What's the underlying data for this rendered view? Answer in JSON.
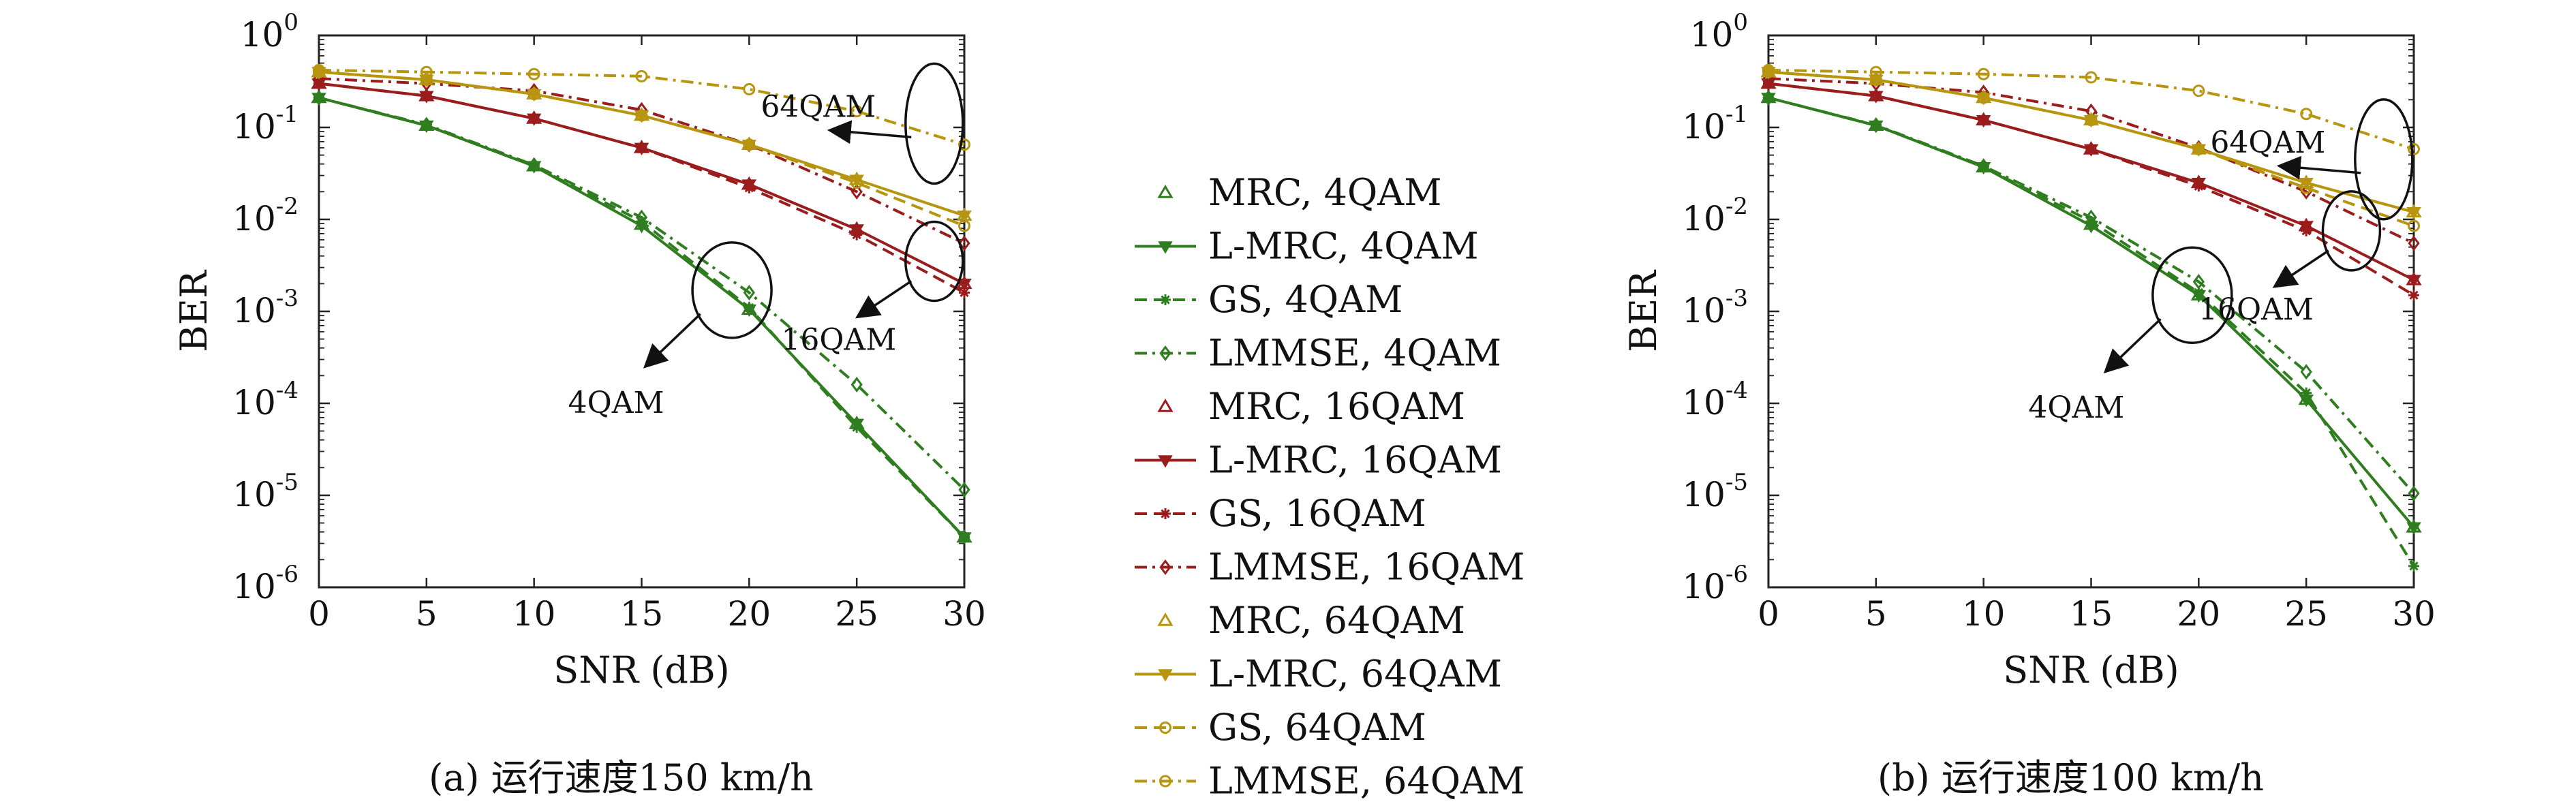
{
  "legend_entries": [
    {
      "label": "MRC, 4QAM",
      "color": "#2e7d1e",
      "dash": "none",
      "marker": "tri-up",
      "line": false
    },
    {
      "label": "L-MRC, 4QAM",
      "color": "#2e7d1e",
      "dash": "solid",
      "marker": "tri-down",
      "line": true
    },
    {
      "label": "GS, 4QAM",
      "color": "#2e7d1e",
      "dash": "dashed",
      "marker": "star",
      "line": true
    },
    {
      "label": "LMMSE, 4QAM",
      "color": "#2e7d1e",
      "dash": "dashdot",
      "marker": "diamond",
      "line": true
    },
    {
      "label": "MRC, 16QAM",
      "color": "#9b1c1c",
      "dash": "none",
      "marker": "tri-up",
      "line": false
    },
    {
      "label": "L-MRC, 16QAM",
      "color": "#9b1c1c",
      "dash": "solid",
      "marker": "tri-down",
      "line": true
    },
    {
      "label": "GS, 16QAM",
      "color": "#9b1c1c",
      "dash": "dashed",
      "marker": "star",
      "line": true
    },
    {
      "label": "LMMSE, 16QAM",
      "color": "#9b1c1c",
      "dash": "dashdot",
      "marker": "diamond",
      "line": true
    },
    {
      "label": "MRC, 64QAM",
      "color": "#b8950f",
      "dash": "none",
      "marker": "tri-up",
      "line": false
    },
    {
      "label": "L-MRC, 64QAM",
      "color": "#b8950f",
      "dash": "solid",
      "marker": "tri-down",
      "line": true
    },
    {
      "label": "GS, 64QAM",
      "color": "#b8950f",
      "dash": "dashed",
      "marker": "circle",
      "line": true
    },
    {
      "label": "LMMSE, 64QAM",
      "color": "#b8950f",
      "dash": "dashdot",
      "marker": "circle",
      "line": true
    }
  ],
  "chart_data": [
    {
      "type": "line",
      "caption": "(a) 运行速度150 km/h",
      "xlabel": "SNR (dB)",
      "ylabel": "BER",
      "x": [
        0,
        5,
        10,
        15,
        20,
        25,
        30
      ],
      "xlim": [
        0,
        30
      ],
      "ylim": [
        1e-06,
        1
      ],
      "yscale": "log",
      "xticks": [
        "0",
        "5",
        "10",
        "15",
        "20",
        "25",
        "30"
      ],
      "ytick_exponents": [
        "0",
        "-1",
        "-2",
        "-3",
        "-4",
        "-5",
        "-6"
      ],
      "annotations": [
        {
          "text": "64QAM",
          "anchor_snr": 28.6,
          "anchor_ber": 0.11
        },
        {
          "text": "16QAM",
          "anchor_snr": 28.6,
          "anchor_ber": 0.0035
        },
        {
          "text": "4QAM",
          "anchor_snr": 19.2,
          "anchor_ber": 0.0017
        }
      ],
      "series": [
        {
          "name": "MRC, 4QAM",
          "values": [
            0.21,
            0.105,
            0.038,
            0.0088,
            0.00105,
            6e-05,
            3.5e-06
          ]
        },
        {
          "name": "L-MRC, 4QAM",
          "values": [
            0.21,
            0.105,
            0.038,
            0.0085,
            0.00105,
            6e-05,
            3.5e-06
          ]
        },
        {
          "name": "GS, 4QAM",
          "values": [
            0.21,
            0.105,
            0.038,
            0.0095,
            0.0011,
            5.5e-05,
            3.5e-06
          ]
        },
        {
          "name": "LMMSE, 4QAM",
          "values": [
            0.21,
            0.107,
            0.039,
            0.0105,
            0.0016,
            0.00016,
            1.15e-05
          ]
        },
        {
          "name": "MRC, 16QAM",
          "values": [
            0.3,
            0.22,
            0.125,
            0.06,
            0.024,
            0.0078,
            0.002
          ]
        },
        {
          "name": "L-MRC, 16QAM",
          "values": [
            0.3,
            0.22,
            0.125,
            0.06,
            0.024,
            0.0078,
            0.002
          ]
        },
        {
          "name": "GS, 16QAM",
          "values": [
            0.3,
            0.22,
            0.125,
            0.06,
            0.022,
            0.0068,
            0.0016
          ]
        },
        {
          "name": "LMMSE, 16QAM",
          "values": [
            0.34,
            0.3,
            0.25,
            0.155,
            0.065,
            0.02,
            0.0055
          ]
        },
        {
          "name": "MRC, 64QAM",
          "values": [
            0.4,
            0.33,
            0.23,
            0.135,
            0.065,
            0.027,
            0.011
          ]
        },
        {
          "name": "L-MRC, 64QAM",
          "values": [
            0.4,
            0.33,
            0.23,
            0.135,
            0.065,
            0.027,
            0.011
          ]
        },
        {
          "name": "GS, 64QAM",
          "values": [
            0.4,
            0.33,
            0.23,
            0.135,
            0.065,
            0.025,
            0.0085
          ]
        },
        {
          "name": "LMMSE, 64QAM",
          "values": [
            0.42,
            0.4,
            0.38,
            0.36,
            0.26,
            0.15,
            0.065
          ]
        }
      ]
    },
    {
      "type": "line",
      "caption": "(b) 运行速度100 km/h",
      "xlabel": "SNR (dB)",
      "ylabel": "BER",
      "x": [
        0,
        5,
        10,
        15,
        20,
        25,
        30
      ],
      "xlim": [
        0,
        30
      ],
      "ylim": [
        1e-06,
        1
      ],
      "yscale": "log",
      "xticks": [
        "0",
        "5",
        "10",
        "15",
        "20",
        "25",
        "30"
      ],
      "ytick_exponents": [
        "0",
        "-1",
        "-2",
        "-3",
        "-4",
        "-5",
        "-6"
      ],
      "annotations": [
        {
          "text": "64QAM",
          "anchor_snr": 28.6,
          "anchor_ber": 0.045
        },
        {
          "text": "16QAM",
          "anchor_snr": 27.1,
          "anchor_ber": 0.0075
        },
        {
          "text": "4QAM",
          "anchor_snr": 19.7,
          "anchor_ber": 0.0015
        }
      ],
      "series": [
        {
          "name": "MRC, 4QAM",
          "values": [
            0.21,
            0.105,
            0.037,
            0.0088,
            0.0015,
            0.00011,
            4.5e-06
          ]
        },
        {
          "name": "L-MRC, 4QAM",
          "values": [
            0.21,
            0.105,
            0.037,
            0.0085,
            0.0015,
            0.00011,
            4.5e-06
          ]
        },
        {
          "name": "GS, 4QAM",
          "values": [
            0.21,
            0.105,
            0.037,
            0.0095,
            0.0016,
            0.00013,
            1.7e-06
          ]
        },
        {
          "name": "LMMSE, 4QAM",
          "values": [
            0.21,
            0.106,
            0.038,
            0.0105,
            0.0021,
            0.00022,
            1.05e-05
          ]
        },
        {
          "name": "MRC, 16QAM",
          "values": [
            0.3,
            0.22,
            0.12,
            0.058,
            0.025,
            0.0085,
            0.0022
          ]
        },
        {
          "name": "L-MRC, 16QAM",
          "values": [
            0.3,
            0.22,
            0.12,
            0.058,
            0.025,
            0.0085,
            0.0022
          ]
        },
        {
          "name": "GS, 16QAM",
          "values": [
            0.3,
            0.22,
            0.12,
            0.058,
            0.023,
            0.0075,
            0.0015
          ]
        },
        {
          "name": "LMMSE, 16QAM",
          "values": [
            0.34,
            0.3,
            0.24,
            0.15,
            0.06,
            0.02,
            0.0055
          ]
        },
        {
          "name": "MRC, 64QAM",
          "values": [
            0.4,
            0.33,
            0.21,
            0.12,
            0.058,
            0.025,
            0.012
          ]
        },
        {
          "name": "L-MRC, 64QAM",
          "values": [
            0.4,
            0.33,
            0.21,
            0.12,
            0.058,
            0.025,
            0.012
          ]
        },
        {
          "name": "GS, 64QAM",
          "values": [
            0.4,
            0.33,
            0.21,
            0.12,
            0.058,
            0.022,
            0.0085
          ]
        },
        {
          "name": "LMMSE, 64QAM",
          "values": [
            0.42,
            0.4,
            0.38,
            0.35,
            0.25,
            0.14,
            0.058
          ]
        }
      ]
    }
  ]
}
